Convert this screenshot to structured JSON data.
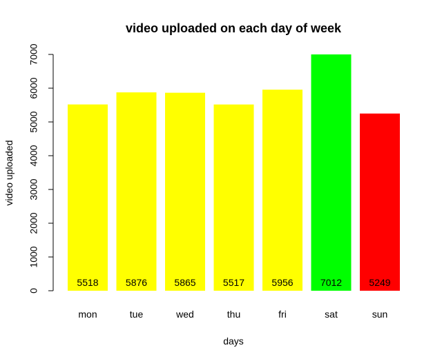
{
  "chart_data": {
    "type": "bar",
    "title": "video uploaded on each day of week",
    "xlabel": "days",
    "ylabel": "video uploaded",
    "categories": [
      "mon",
      "tue",
      "wed",
      "thu",
      "fri",
      "sat",
      "sun"
    ],
    "values": [
      5518,
      5876,
      5865,
      5517,
      5956,
      7012,
      5249
    ],
    "bar_colors": [
      "#FFFF00",
      "#FFFF00",
      "#FFFF00",
      "#FFFF00",
      "#FFFF00",
      "#00FF00",
      "#FF0000"
    ],
    "ylim": [
      0,
      7000
    ],
    "yticks": [
      0,
      1000,
      2000,
      3000,
      4000,
      5000,
      6000,
      7000
    ],
    "grid": false,
    "legend": "none"
  }
}
